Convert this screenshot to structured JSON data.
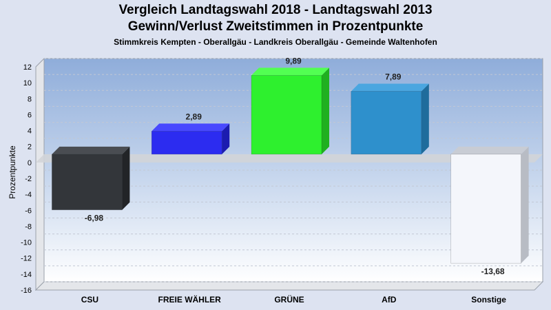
{
  "chart_data": {
    "type": "bar",
    "title": "Vergleich Landtagswahl 2018 - Landtagswahl 2013",
    "subtitle": "Gewinn/Verlust Zweitstimmen in Prozentpunkte",
    "caption": "Stimmkreis Kempten - Oberallgäu - Landkreis Oberallgäu - Gemeinde Waltenhofen",
    "xlabel": "",
    "ylabel": "Prozentpunkte",
    "categories": [
      "CSU",
      "FREIE WÄHLER",
      "GRÜNE",
      "AfD",
      "Sonstige"
    ],
    "values": [
      -6.98,
      2.89,
      9.89,
      7.89,
      -13.68
    ],
    "value_labels": [
      "-6,98",
      "2,89",
      "9,89",
      "7,89",
      "-13,68"
    ],
    "colors": [
      "#33363a",
      "#2c2cf0",
      "#2ef02e",
      "#2e90cc",
      "#f4f6fb"
    ],
    "side_colors": [
      "#222427",
      "#1c1cb0",
      "#20b020",
      "#1f6c9c",
      "#b8bcc4"
    ],
    "top_colors": [
      "#4a4d52",
      "#4848ff",
      "#52ff52",
      "#4aa6e0",
      "#c8ccd4"
    ],
    "ylim": [
      -16,
      12
    ],
    "yticks": [
      12,
      10,
      8,
      6,
      4,
      2,
      0,
      -2,
      -4,
      -6,
      -8,
      -10,
      -12,
      -14,
      -16
    ],
    "grid": true,
    "legend": "none"
  }
}
